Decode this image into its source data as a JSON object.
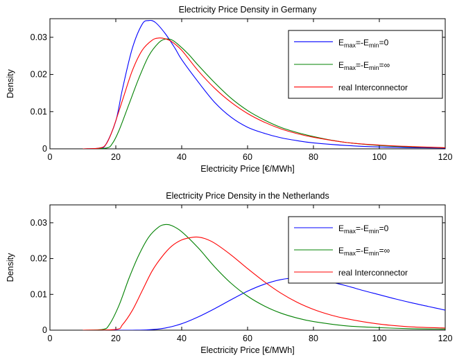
{
  "chart_data": [
    {
      "type": "line",
      "title": "Electricity Price Density in Germany",
      "xlabel": "Electricity Price [€/MWh]",
      "ylabel": "Density",
      "xlim": [
        0,
        120
      ],
      "ylim": [
        0,
        0.035
      ],
      "xticks": [
        "0",
        "20",
        "40",
        "60",
        "80",
        "100",
        "120"
      ],
      "yticks": [
        "0",
        "0.01",
        "0.02",
        "0.03"
      ],
      "legend_position": "top-right",
      "series": [
        {
          "label_main": "E",
          "sub1": "max",
          "mid": "=-E",
          "sub2": "min",
          "tail": "=0",
          "color": "#0000ff",
          "x": [
            10,
            15,
            17,
            20,
            22,
            25,
            28,
            30,
            32,
            35,
            38,
            40,
            45,
            50,
            55,
            60,
            65,
            70,
            75,
            80,
            90,
            100,
            110,
            120
          ],
          "y": [
            0,
            0.0002,
            0.0012,
            0.0075,
            0.016,
            0.027,
            0.0335,
            0.0345,
            0.034,
            0.031,
            0.027,
            0.024,
            0.018,
            0.0125,
            0.0085,
            0.0058,
            0.0042,
            0.003,
            0.0022,
            0.0016,
            0.0009,
            0.0005,
            0.0003,
            0.0002
          ]
        },
        {
          "label_main": "E",
          "sub1": "max",
          "mid": "=-E",
          "sub2": "min",
          "tail": "=∞",
          "color": "#008000",
          "x": [
            10,
            17,
            19,
            21,
            24,
            27,
            30,
            33,
            35,
            37,
            39,
            42,
            45,
            50,
            55,
            60,
            65,
            70,
            75,
            80,
            85,
            90,
            100,
            110,
            120
          ],
          "y": [
            0,
            0.0002,
            0.0015,
            0.005,
            0.012,
            0.019,
            0.025,
            0.0285,
            0.0295,
            0.0293,
            0.028,
            0.0255,
            0.0225,
            0.0178,
            0.0136,
            0.0103,
            0.0078,
            0.0058,
            0.0044,
            0.0033,
            0.0024,
            0.0017,
            0.0009,
            0.0005,
            0.0003
          ]
        },
        {
          "label_main": "real Interconnector",
          "sub1": "",
          "mid": "",
          "sub2": "",
          "tail": "",
          "color": "#ff0000",
          "x": [
            10,
            15,
            17,
            19,
            22,
            25,
            28,
            31,
            33,
            35,
            37,
            40,
            45,
            50,
            55,
            60,
            65,
            70,
            75,
            80,
            90,
            100,
            110,
            120
          ],
          "y": [
            0,
            0.0002,
            0.0012,
            0.005,
            0.013,
            0.021,
            0.0265,
            0.0292,
            0.0298,
            0.0296,
            0.0288,
            0.0265,
            0.021,
            0.0163,
            0.0125,
            0.0095,
            0.0072,
            0.0054,
            0.0041,
            0.0031,
            0.0017,
            0.001,
            0.0006,
            0.0003
          ]
        }
      ]
    },
    {
      "type": "line",
      "title": "Electricity Price Density in the Netherlands",
      "xlabel": "Electricity Price [€/MWh]",
      "ylabel": "Density",
      "xlim": [
        0,
        120
      ],
      "ylim": [
        0,
        0.035
      ],
      "xticks": [
        "0",
        "20",
        "40",
        "60",
        "80",
        "100",
        "120"
      ],
      "yticks": [
        "0",
        "0.01",
        "0.02",
        "0.03"
      ],
      "legend_position": "top-right",
      "series": [
        {
          "label_main": "E",
          "sub1": "max",
          "mid": "=-E",
          "sub2": "min",
          "tail": "=0",
          "color": "#0000ff",
          "x": [
            10,
            25,
            30,
            35,
            40,
            45,
            50,
            55,
            60,
            65,
            70,
            75,
            80,
            85,
            90,
            95,
            100,
            105,
            110,
            115,
            120
          ],
          "y": [
            0,
            0,
            0.0001,
            0.0006,
            0.0018,
            0.0037,
            0.006,
            0.0085,
            0.0109,
            0.0128,
            0.0141,
            0.0146,
            0.0143,
            0.0135,
            0.0124,
            0.0111,
            0.0099,
            0.0087,
            0.0076,
            0.0066,
            0.0056
          ]
        },
        {
          "label_main": "E",
          "sub1": "max",
          "mid": "=-E",
          "sub2": "min",
          "tail": "=∞",
          "color": "#008000",
          "x": [
            10,
            16,
            18,
            21,
            24,
            27,
            30,
            33,
            35,
            37,
            40,
            45,
            50,
            55,
            60,
            65,
            70,
            75,
            80,
            90,
            100,
            110,
            120
          ],
          "y": [
            0,
            0.0002,
            0.0015,
            0.007,
            0.0145,
            0.021,
            0.026,
            0.0288,
            0.0295,
            0.0292,
            0.0275,
            0.023,
            0.0177,
            0.0131,
            0.0095,
            0.0068,
            0.0048,
            0.0034,
            0.0024,
            0.0012,
            0.0007,
            0.0004,
            0.0003
          ]
        },
        {
          "label_main": "real Interconnector",
          "sub1": "",
          "mid": "",
          "sub2": "",
          "tail": "",
          "color": "#ff0000",
          "x": [
            10,
            20,
            22,
            25,
            28,
            31,
            34,
            37,
            40,
            43,
            45,
            47,
            50,
            55,
            60,
            65,
            70,
            75,
            80,
            85,
            90,
            100,
            110,
            120
          ],
          "y": [
            0,
            0.0002,
            0.0015,
            0.0055,
            0.011,
            0.0165,
            0.0205,
            0.0235,
            0.0252,
            0.0259,
            0.026,
            0.0256,
            0.0243,
            0.021,
            0.0172,
            0.0136,
            0.0104,
            0.0078,
            0.0058,
            0.0043,
            0.0032,
            0.0017,
            0.0009,
            0.0006
          ]
        }
      ]
    }
  ]
}
